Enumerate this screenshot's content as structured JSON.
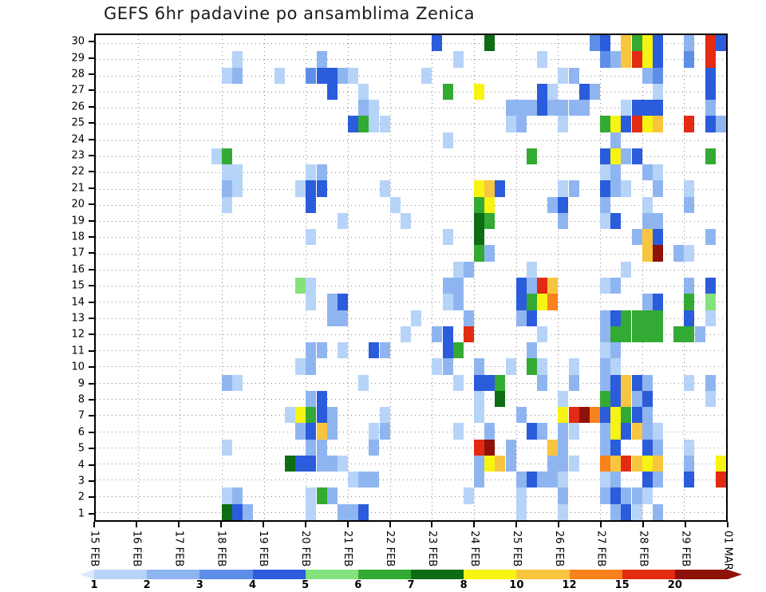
{
  "chart_data": {
    "type": "heatmap",
    "title": "GEFS 6hr padavine po ansamblima Zenica",
    "x_axis": {
      "tick_labels": [
        "15 FEB",
        "16 FEB",
        "17 FEB",
        "18 FEB",
        "19 FEB",
        "20 FEB",
        "21 FEB",
        "22 FEB",
        "23 FEB",
        "24 FEB",
        "25 FEB",
        "26 FEB",
        "27 FEB",
        "28 FEB",
        "29 FEB",
        "01 MAR"
      ],
      "cell_hours": 6,
      "n_cols": 60
    },
    "y_axis": {
      "tick_labels": [
        "30",
        "29",
        "28",
        "27",
        "26",
        "25",
        "24",
        "23",
        "22",
        "21",
        "20",
        "19",
        "18",
        "17",
        "16",
        "15",
        "14",
        "13",
        "12",
        "11",
        "10",
        "9",
        "8",
        "7",
        "6",
        "5",
        "4",
        "3",
        "2",
        "1"
      ]
    },
    "legend": {
      "thresholds": [
        "1",
        "2",
        "3",
        "4",
        "5",
        "6",
        "7",
        "8",
        "10",
        "12",
        "15",
        "20"
      ],
      "colors": [
        "#dce9fb",
        "#b6d3f8",
        "#8fb5f1",
        "#5e8fe8",
        "#2a5cdb",
        "#84e27c",
        "#33aa33",
        "#0e6c12",
        "#f7f312",
        "#f8c63e",
        "#f8821c",
        "#e22b10",
        "#8e120a"
      ]
    },
    "grid": {
      "show": true,
      "style": "dotted"
    },
    "cells": [
      [
        30,
        32,
        4
      ],
      [
        30,
        37,
        7
      ],
      [
        30,
        47,
        3
      ],
      [
        30,
        48,
        4
      ],
      [
        30,
        50,
        10
      ],
      [
        30,
        51,
        6
      ],
      [
        30,
        52,
        8
      ],
      [
        30,
        53,
        4
      ],
      [
        30,
        56,
        2
      ],
      [
        30,
        58,
        15
      ],
      [
        30,
        59,
        4
      ],
      [
        29,
        13,
        1
      ],
      [
        29,
        21,
        2
      ],
      [
        29,
        34,
        1
      ],
      [
        29,
        42,
        1
      ],
      [
        29,
        48,
        3
      ],
      [
        29,
        49,
        2
      ],
      [
        29,
        50,
        10
      ],
      [
        29,
        51,
        15
      ],
      [
        29,
        52,
        8
      ],
      [
        29,
        53,
        4
      ],
      [
        29,
        56,
        3
      ],
      [
        29,
        58,
        15
      ],
      [
        28,
        12,
        1
      ],
      [
        28,
        13,
        2
      ],
      [
        28,
        17,
        1
      ],
      [
        28,
        20,
        3
      ],
      [
        28,
        21,
        4
      ],
      [
        28,
        22,
        4
      ],
      [
        28,
        23,
        2
      ],
      [
        28,
        24,
        1
      ],
      [
        28,
        31,
        1
      ],
      [
        28,
        44,
        1
      ],
      [
        28,
        45,
        2
      ],
      [
        28,
        52,
        2
      ],
      [
        28,
        53,
        3
      ],
      [
        28,
        58,
        4
      ],
      [
        27,
        22,
        4
      ],
      [
        27,
        25,
        1
      ],
      [
        27,
        33,
        6
      ],
      [
        27,
        36,
        8
      ],
      [
        27,
        42,
        4
      ],
      [
        27,
        43,
        1
      ],
      [
        27,
        46,
        4
      ],
      [
        27,
        47,
        2
      ],
      [
        27,
        53,
        1
      ],
      [
        27,
        58,
        4
      ],
      [
        26,
        25,
        2
      ],
      [
        26,
        26,
        1
      ],
      [
        26,
        39,
        2
      ],
      [
        26,
        40,
        2
      ],
      [
        26,
        41,
        2
      ],
      [
        26,
        42,
        4
      ],
      [
        26,
        43,
        2
      ],
      [
        26,
        44,
        2
      ],
      [
        26,
        45,
        2
      ],
      [
        26,
        46,
        2
      ],
      [
        26,
        50,
        1
      ],
      [
        26,
        51,
        4
      ],
      [
        26,
        52,
        4
      ],
      [
        26,
        53,
        4
      ],
      [
        26,
        58,
        2
      ],
      [
        25,
        24,
        4
      ],
      [
        25,
        25,
        6
      ],
      [
        25,
        26,
        1
      ],
      [
        25,
        27,
        1
      ],
      [
        25,
        39,
        1
      ],
      [
        25,
        40,
        2
      ],
      [
        25,
        44,
        1
      ],
      [
        25,
        48,
        6
      ],
      [
        25,
        49,
        8
      ],
      [
        25,
        50,
        4
      ],
      [
        25,
        51,
        15
      ],
      [
        25,
        52,
        8
      ],
      [
        25,
        53,
        10
      ],
      [
        25,
        56,
        15
      ],
      [
        25,
        58,
        4
      ],
      [
        25,
        59,
        2
      ],
      [
        24,
        33,
        1
      ],
      [
        24,
        49,
        2
      ],
      [
        23,
        11,
        1
      ],
      [
        23,
        12,
        6
      ],
      [
        23,
        41,
        6
      ],
      [
        23,
        48,
        4
      ],
      [
        23,
        49,
        8
      ],
      [
        23,
        50,
        2
      ],
      [
        23,
        51,
        4
      ],
      [
        23,
        58,
        6
      ],
      [
        22,
        12,
        1
      ],
      [
        22,
        13,
        1
      ],
      [
        22,
        20,
        1
      ],
      [
        22,
        21,
        2
      ],
      [
        22,
        48,
        1
      ],
      [
        22,
        49,
        2
      ],
      [
        22,
        52,
        2
      ],
      [
        22,
        53,
        1
      ],
      [
        21,
        12,
        2
      ],
      [
        21,
        13,
        1
      ],
      [
        21,
        19,
        1
      ],
      [
        21,
        20,
        4
      ],
      [
        21,
        21,
        4
      ],
      [
        21,
        27,
        1
      ],
      [
        21,
        36,
        8
      ],
      [
        21,
        37,
        10
      ],
      [
        21,
        38,
        4
      ],
      [
        21,
        44,
        1
      ],
      [
        21,
        45,
        2
      ],
      [
        21,
        48,
        4
      ],
      [
        21,
        49,
        2
      ],
      [
        21,
        50,
        1
      ],
      [
        21,
        53,
        2
      ],
      [
        21,
        56,
        1
      ],
      [
        20,
        12,
        1
      ],
      [
        20,
        20,
        4
      ],
      [
        20,
        28,
        1
      ],
      [
        20,
        36,
        6
      ],
      [
        20,
        37,
        8
      ],
      [
        20,
        43,
        2
      ],
      [
        20,
        44,
        4
      ],
      [
        20,
        48,
        2
      ],
      [
        20,
        52,
        1
      ],
      [
        20,
        56,
        2
      ],
      [
        19,
        23,
        1
      ],
      [
        19,
        29,
        1
      ],
      [
        19,
        36,
        7
      ],
      [
        19,
        37,
        6
      ],
      [
        19,
        44,
        2
      ],
      [
        19,
        48,
        1
      ],
      [
        19,
        49,
        4
      ],
      [
        19,
        52,
        2
      ],
      [
        19,
        53,
        2
      ],
      [
        18,
        20,
        1
      ],
      [
        18,
        33,
        1
      ],
      [
        18,
        36,
        7
      ],
      [
        18,
        51,
        2
      ],
      [
        18,
        52,
        10
      ],
      [
        18,
        53,
        4
      ],
      [
        18,
        58,
        2
      ],
      [
        17,
        36,
        6
      ],
      [
        17,
        37,
        2
      ],
      [
        17,
        52,
        10
      ],
      [
        17,
        53,
        20
      ],
      [
        17,
        55,
        2
      ],
      [
        17,
        56,
        1
      ],
      [
        16,
        34,
        1
      ],
      [
        16,
        35,
        2
      ],
      [
        16,
        41,
        1
      ],
      [
        16,
        50,
        1
      ],
      [
        15,
        19,
        5
      ],
      [
        15,
        20,
        1
      ],
      [
        15,
        33,
        2
      ],
      [
        15,
        34,
        2
      ],
      [
        15,
        40,
        4
      ],
      [
        15,
        41,
        2
      ],
      [
        15,
        42,
        15
      ],
      [
        15,
        43,
        10
      ],
      [
        15,
        48,
        1
      ],
      [
        15,
        49,
        2
      ],
      [
        15,
        56,
        2
      ],
      [
        15,
        58,
        4
      ],
      [
        14,
        20,
        1
      ],
      [
        14,
        22,
        2
      ],
      [
        14,
        23,
        4
      ],
      [
        14,
        33,
        1
      ],
      [
        14,
        34,
        2
      ],
      [
        14,
        40,
        4
      ],
      [
        14,
        41,
        6
      ],
      [
        14,
        42,
        8
      ],
      [
        14,
        43,
        12
      ],
      [
        14,
        52,
        2
      ],
      [
        14,
        53,
        4
      ],
      [
        14,
        56,
        6
      ],
      [
        14,
        58,
        5
      ],
      [
        13,
        22,
        2
      ],
      [
        13,
        23,
        2
      ],
      [
        13,
        30,
        1
      ],
      [
        13,
        35,
        2
      ],
      [
        13,
        40,
        2
      ],
      [
        13,
        41,
        4
      ],
      [
        13,
        48,
        2
      ],
      [
        13,
        49,
        4
      ],
      [
        13,
        50,
        6
      ],
      [
        13,
        51,
        6
      ],
      [
        13,
        52,
        6
      ],
      [
        13,
        53,
        6
      ],
      [
        13,
        56,
        4
      ],
      [
        13,
        58,
        1
      ],
      [
        12,
        29,
        1
      ],
      [
        12,
        32,
        2
      ],
      [
        12,
        33,
        4
      ],
      [
        12,
        35,
        15
      ],
      [
        12,
        42,
        1
      ],
      [
        12,
        48,
        2
      ],
      [
        12,
        49,
        6
      ],
      [
        12,
        50,
        6
      ],
      [
        12,
        51,
        6
      ],
      [
        12,
        52,
        6
      ],
      [
        12,
        53,
        6
      ],
      [
        12,
        55,
        6
      ],
      [
        12,
        56,
        6
      ],
      [
        12,
        57,
        2
      ],
      [
        11,
        20,
        2
      ],
      [
        11,
        21,
        2
      ],
      [
        11,
        23,
        1
      ],
      [
        11,
        26,
        4
      ],
      [
        11,
        27,
        2
      ],
      [
        11,
        33,
        4
      ],
      [
        11,
        34,
        6
      ],
      [
        11,
        41,
        2
      ],
      [
        11,
        48,
        1
      ],
      [
        11,
        49,
        2
      ],
      [
        10,
        19,
        1
      ],
      [
        10,
        20,
        2
      ],
      [
        10,
        32,
        1
      ],
      [
        10,
        33,
        2
      ],
      [
        10,
        36,
        2
      ],
      [
        10,
        39,
        1
      ],
      [
        10,
        41,
        6
      ],
      [
        10,
        42,
        1
      ],
      [
        10,
        45,
        1
      ],
      [
        10,
        48,
        2
      ],
      [
        10,
        49,
        1
      ],
      [
        9,
        12,
        2
      ],
      [
        9,
        13,
        1
      ],
      [
        9,
        25,
        1
      ],
      [
        9,
        34,
        1
      ],
      [
        9,
        36,
        4
      ],
      [
        9,
        37,
        4
      ],
      [
        9,
        38,
        6
      ],
      [
        9,
        42,
        2
      ],
      [
        9,
        45,
        2
      ],
      [
        9,
        48,
        2
      ],
      [
        9,
        49,
        4
      ],
      [
        9,
        50,
        10
      ],
      [
        9,
        51,
        4
      ],
      [
        9,
        52,
        2
      ],
      [
        9,
        56,
        1
      ],
      [
        9,
        58,
        2
      ],
      [
        8,
        20,
        2
      ],
      [
        8,
        21,
        4
      ],
      [
        8,
        36,
        1
      ],
      [
        8,
        38,
        7
      ],
      [
        8,
        44,
        1
      ],
      [
        8,
        48,
        6
      ],
      [
        8,
        49,
        4
      ],
      [
        8,
        50,
        10
      ],
      [
        8,
        51,
        2
      ],
      [
        8,
        52,
        4
      ],
      [
        8,
        58,
        1
      ],
      [
        7,
        18,
        1
      ],
      [
        7,
        19,
        8
      ],
      [
        7,
        20,
        6
      ],
      [
        7,
        21,
        4
      ],
      [
        7,
        22,
        2
      ],
      [
        7,
        27,
        1
      ],
      [
        7,
        36,
        1
      ],
      [
        7,
        40,
        2
      ],
      [
        7,
        44,
        8
      ],
      [
        7,
        45,
        15
      ],
      [
        7,
        46,
        20
      ],
      [
        7,
        47,
        12
      ],
      [
        7,
        48,
        4
      ],
      [
        7,
        49,
        8
      ],
      [
        7,
        50,
        6
      ],
      [
        7,
        51,
        4
      ],
      [
        7,
        52,
        2
      ],
      [
        6,
        19,
        2
      ],
      [
        6,
        20,
        4
      ],
      [
        6,
        21,
        10
      ],
      [
        6,
        22,
        2
      ],
      [
        6,
        26,
        1
      ],
      [
        6,
        27,
        2
      ],
      [
        6,
        34,
        1
      ],
      [
        6,
        37,
        2
      ],
      [
        6,
        41,
        4
      ],
      [
        6,
        42,
        2
      ],
      [
        6,
        44,
        2
      ],
      [
        6,
        45,
        1
      ],
      [
        6,
        48,
        2
      ],
      [
        6,
        49,
        8
      ],
      [
        6,
        50,
        4
      ],
      [
        6,
        51,
        10
      ],
      [
        6,
        52,
        2
      ],
      [
        6,
        53,
        1
      ],
      [
        5,
        12,
        1
      ],
      [
        5,
        20,
        2
      ],
      [
        5,
        21,
        2
      ],
      [
        5,
        26,
        2
      ],
      [
        5,
        36,
        15
      ],
      [
        5,
        37,
        20
      ],
      [
        5,
        39,
        2
      ],
      [
        5,
        43,
        10
      ],
      [
        5,
        44,
        2
      ],
      [
        5,
        48,
        2
      ],
      [
        5,
        49,
        4
      ],
      [
        5,
        52,
        4
      ],
      [
        5,
        53,
        2
      ],
      [
        5,
        56,
        1
      ],
      [
        4,
        18,
        7
      ],
      [
        4,
        19,
        4
      ],
      [
        4,
        20,
        4
      ],
      [
        4,
        21,
        2
      ],
      [
        4,
        22,
        2
      ],
      [
        4,
        23,
        1
      ],
      [
        4,
        36,
        2
      ],
      [
        4,
        37,
        8
      ],
      [
        4,
        38,
        10
      ],
      [
        4,
        39,
        2
      ],
      [
        4,
        43,
        2
      ],
      [
        4,
        44,
        2
      ],
      [
        4,
        45,
        1
      ],
      [
        4,
        48,
        12
      ],
      [
        4,
        49,
        10
      ],
      [
        4,
        50,
        15
      ],
      [
        4,
        51,
        10
      ],
      [
        4,
        52,
        8
      ],
      [
        4,
        53,
        10
      ],
      [
        4,
        56,
        2
      ],
      [
        4,
        59,
        8
      ],
      [
        3,
        24,
        1
      ],
      [
        3,
        25,
        2
      ],
      [
        3,
        26,
        2
      ],
      [
        3,
        36,
        2
      ],
      [
        3,
        40,
        2
      ],
      [
        3,
        41,
        4
      ],
      [
        3,
        42,
        2
      ],
      [
        3,
        43,
        2
      ],
      [
        3,
        44,
        1
      ],
      [
        3,
        48,
        1
      ],
      [
        3,
        49,
        2
      ],
      [
        3,
        52,
        4
      ],
      [
        3,
        53,
        2
      ],
      [
        3,
        56,
        4
      ],
      [
        3,
        59,
        15
      ],
      [
        2,
        12,
        1
      ],
      [
        2,
        13,
        2
      ],
      [
        2,
        20,
        1
      ],
      [
        2,
        21,
        6
      ],
      [
        2,
        22,
        2
      ],
      [
        2,
        35,
        1
      ],
      [
        2,
        40,
        1
      ],
      [
        2,
        44,
        2
      ],
      [
        2,
        48,
        2
      ],
      [
        2,
        49,
        4
      ],
      [
        2,
        50,
        2
      ],
      [
        2,
        51,
        2
      ],
      [
        2,
        52,
        1
      ],
      [
        1,
        12,
        7
      ],
      [
        1,
        13,
        4
      ],
      [
        1,
        14,
        2
      ],
      [
        1,
        20,
        1
      ],
      [
        1,
        23,
        2
      ],
      [
        1,
        24,
        2
      ],
      [
        1,
        25,
        4
      ],
      [
        1,
        40,
        1
      ],
      [
        1,
        44,
        1
      ],
      [
        1,
        49,
        2
      ],
      [
        1,
        50,
        4
      ],
      [
        1,
        51,
        1
      ],
      [
        1,
        53,
        2
      ]
    ]
  }
}
